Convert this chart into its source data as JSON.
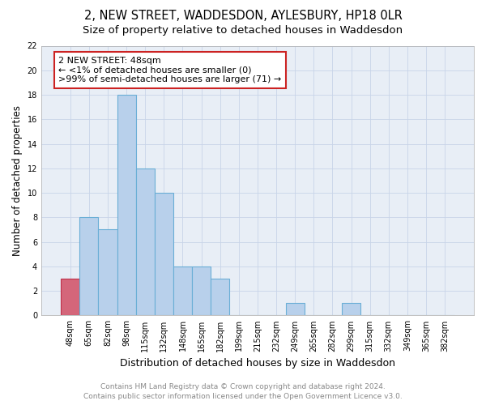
{
  "title": "2, NEW STREET, WADDESDON, AYLESBURY, HP18 0LR",
  "subtitle": "Size of property relative to detached houses in Waddesdon",
  "xlabel": "Distribution of detached houses by size in Waddesdon",
  "ylabel": "Number of detached properties",
  "categories": [
    "48sqm",
    "65sqm",
    "82sqm",
    "98sqm",
    "115sqm",
    "132sqm",
    "148sqm",
    "165sqm",
    "182sqm",
    "199sqm",
    "215sqm",
    "232sqm",
    "249sqm",
    "265sqm",
    "282sqm",
    "299sqm",
    "315sqm",
    "332sqm",
    "349sqm",
    "365sqm",
    "382sqm"
  ],
  "values": [
    3,
    8,
    7,
    18,
    12,
    10,
    4,
    4,
    3,
    0,
    0,
    0,
    1,
    0,
    0,
    1,
    0,
    0,
    0,
    0,
    0
  ],
  "bar_color": "#b8d0eb",
  "bar_edge_color": "#6aaed6",
  "highlight_bar_index": 0,
  "highlight_bar_color": "#d4667a",
  "highlight_bar_edge_color": "#c0304a",
  "annotation_box_color": "#cc2222",
  "annotation_line1": "2 NEW STREET: 48sqm",
  "annotation_line2": "← <1% of detached houses are smaller (0)",
  "annotation_line3": ">99% of semi-detached houses are larger (71) →",
  "ylim": [
    0,
    22
  ],
  "yticks": [
    0,
    2,
    4,
    6,
    8,
    10,
    12,
    14,
    16,
    18,
    20,
    22
  ],
  "grid_color": "#c8d4e8",
  "background_color": "#e8eef6",
  "footer_text": "Contains HM Land Registry data © Crown copyright and database right 2024.\nContains public sector information licensed under the Open Government Licence v3.0.",
  "title_fontsize": 10.5,
  "subtitle_fontsize": 9.5,
  "xlabel_fontsize": 9,
  "ylabel_fontsize": 8.5,
  "tick_fontsize": 7,
  "annotation_fontsize": 8,
  "footer_fontsize": 6.5
}
